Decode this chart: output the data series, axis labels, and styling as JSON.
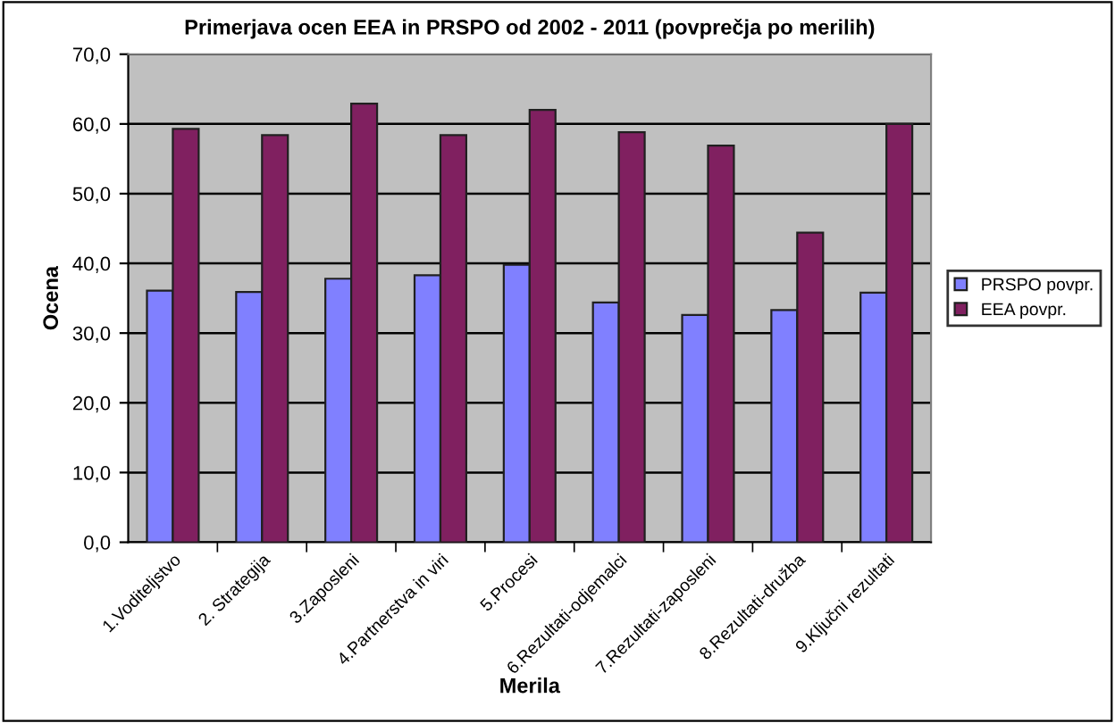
{
  "chart_data": {
    "type": "bar",
    "title": "Primerjava ocen EEA in PRSPO od 2002 - 2011 (povprečja po merilih)",
    "xlabel": "Merila",
    "ylabel": "Ocena",
    "categories": [
      "1.Voditeljstvo",
      "2. Strategija",
      "3.Zaposleni",
      "4.Partnerstva in viri",
      "5.Procesi",
      "6.Rezultati-odjemalci",
      "7.Rezultati-zaposleni",
      "8.Rezultati-družba",
      "9.Ključni rezultati"
    ],
    "series": [
      {
        "name": "PRSPO povpr.",
        "color": "#8080ff",
        "values": [
          36.1,
          35.9,
          37.8,
          38.3,
          39.8,
          34.4,
          32.6,
          33.3,
          35.8
        ]
      },
      {
        "name": "EEA povpr.",
        "color": "#802060",
        "values": [
          59.3,
          58.4,
          62.9,
          58.4,
          62.0,
          58.8,
          56.9,
          44.4,
          60.0
        ]
      }
    ],
    "ylim": [
      0,
      70
    ],
    "yticks": [
      {
        "value": 0,
        "label": "0,0"
      },
      {
        "value": 10,
        "label": "10,0"
      },
      {
        "value": 20,
        "label": "20,0"
      },
      {
        "value": 30,
        "label": "30,0"
      },
      {
        "value": 40,
        "label": "40,0"
      },
      {
        "value": 50,
        "label": "50,0"
      },
      {
        "value": 60,
        "label": "60,0"
      },
      {
        "value": 70,
        "label": "70,0"
      }
    ],
    "grid": "y",
    "legend": "right"
  }
}
